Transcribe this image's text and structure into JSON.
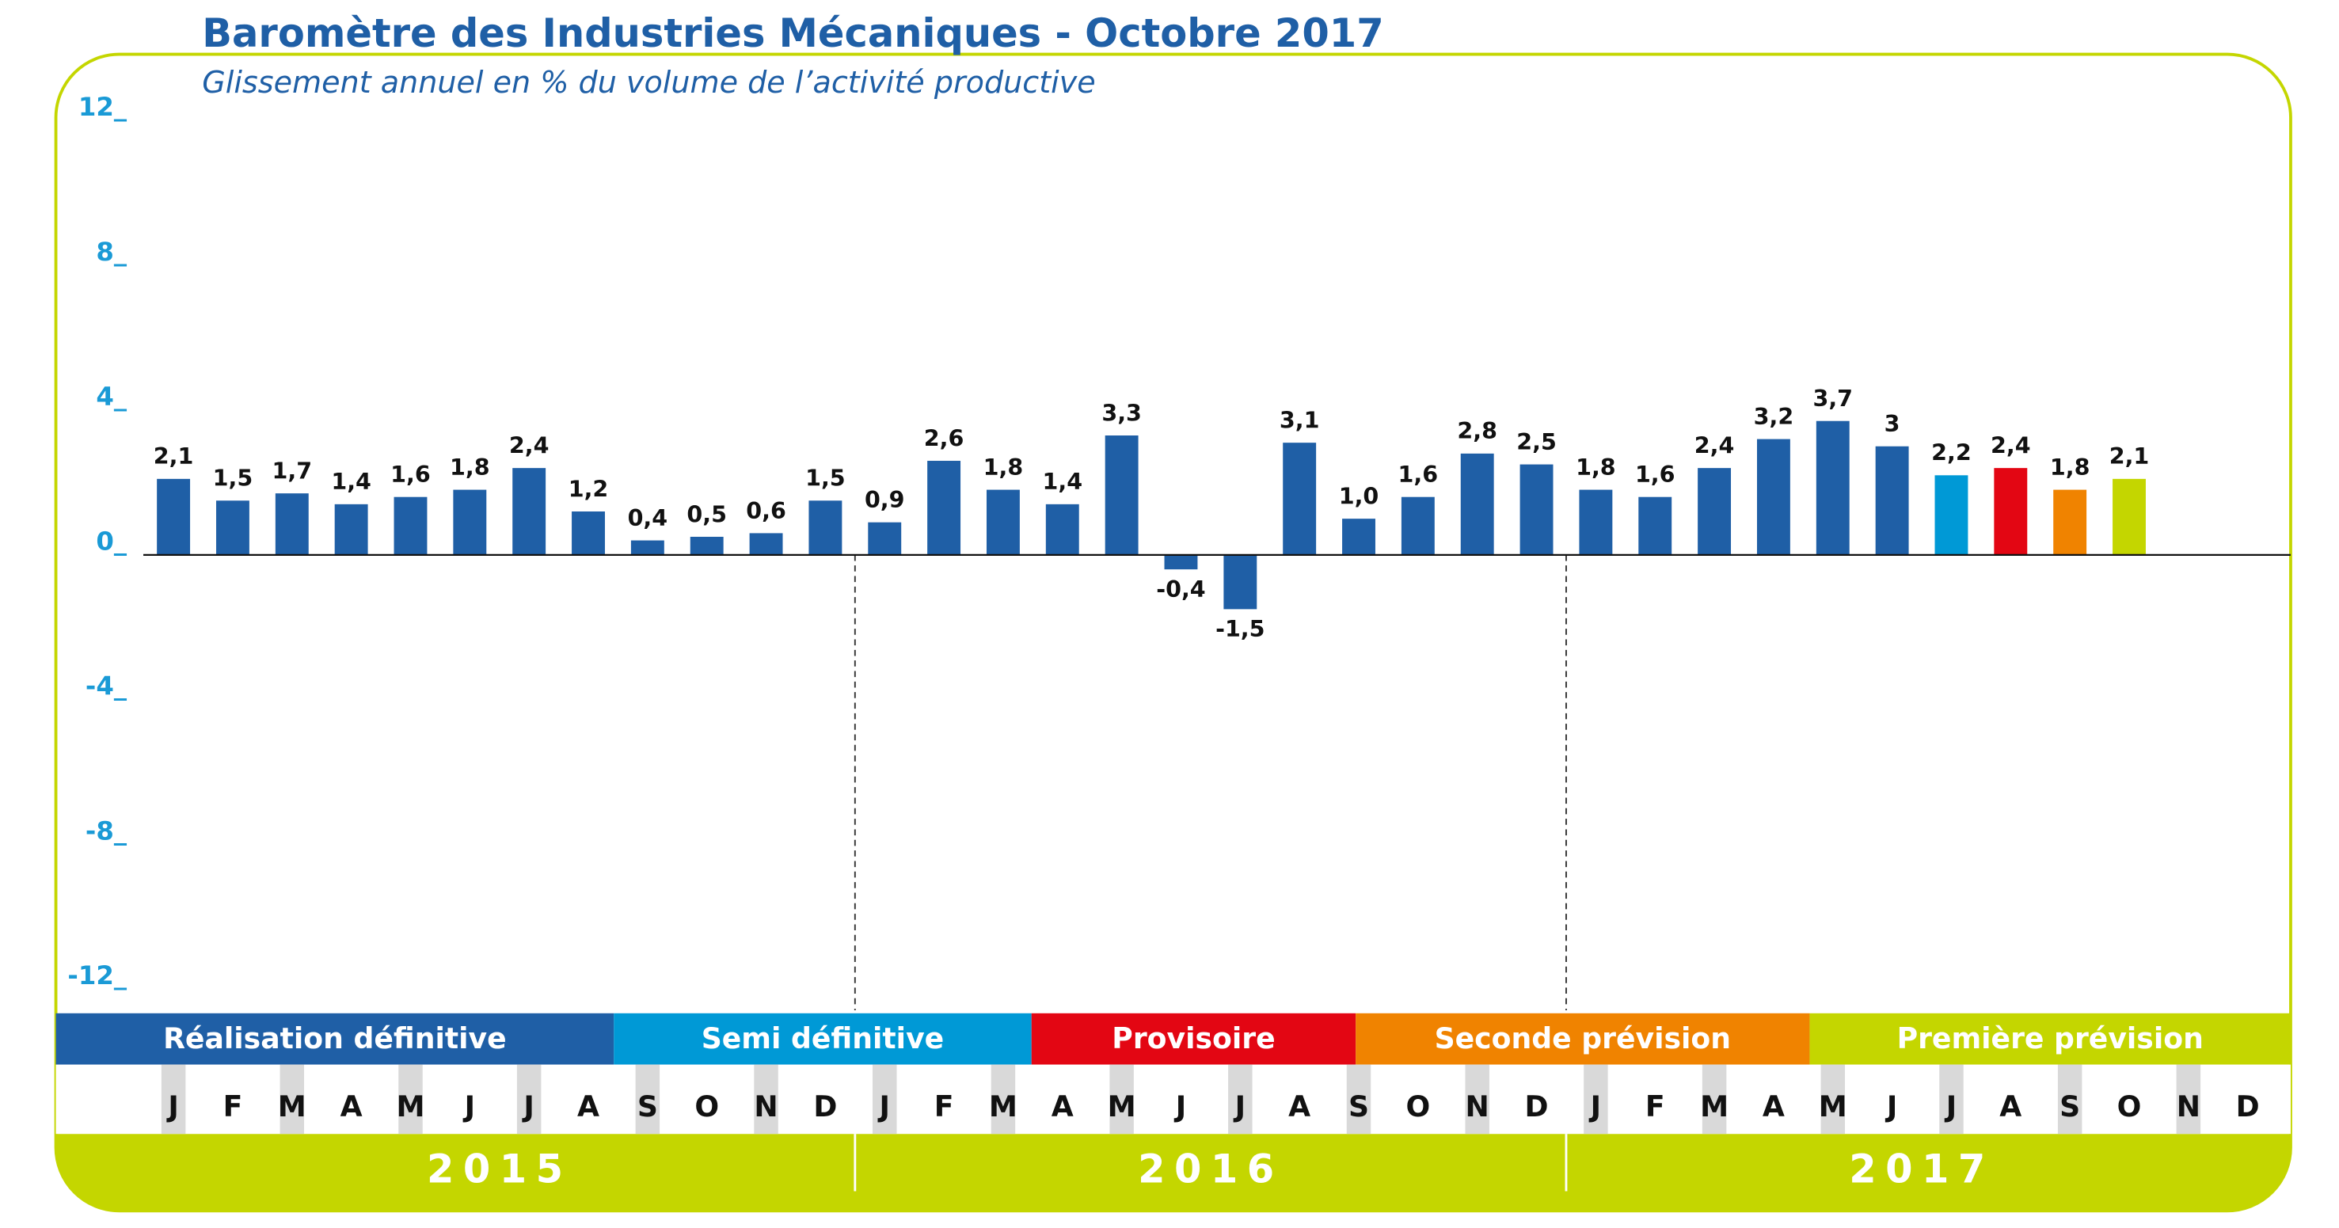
{
  "chart_data": {
    "type": "bar",
    "title": "Baromètre des Industries Mécaniques - Octobre 2017",
    "subtitle": "Glissement annuel en % du volume de l’activité productive",
    "categories": [
      "J",
      "F",
      "M",
      "A",
      "M",
      "J",
      "J",
      "A",
      "S",
      "O",
      "N",
      "D",
      "J",
      "F",
      "M",
      "A",
      "M",
      "J",
      "J",
      "A",
      "S",
      "O",
      "N",
      "D",
      "J",
      "F",
      "M",
      "A",
      "M",
      "J",
      "J",
      "A",
      "S",
      "O",
      "N",
      "D"
    ],
    "years": [
      "2015",
      "2016",
      "2017"
    ],
    "values": [
      2.1,
      1.5,
      1.7,
      1.4,
      1.6,
      1.8,
      2.4,
      1.2,
      0.4,
      0.5,
      0.6,
      1.5,
      0.9,
      2.6,
      1.8,
      1.4,
      3.3,
      -0.4,
      -1.5,
      3.1,
      1.0,
      1.6,
      2.8,
      2.5,
      1.8,
      1.6,
      2.4,
      3.2,
      3.7,
      3,
      2.2,
      2.4,
      1.8,
      2.1,
      null,
      null
    ],
    "value_labels": [
      "2,1",
      "1,5",
      "1,7",
      "1,4",
      "1,6",
      "1,8",
      "2,4",
      "1,2",
      "0,4",
      "0,5",
      "0,6",
      "1,5",
      "0,9",
      "2,6",
      "1,8",
      "1,4",
      "3,3",
      "-0,4",
      "-1,5",
      "3,1",
      "1,0",
      "1,6",
      "2,8",
      "2,5",
      "1,8",
      "1,6",
      "2,4",
      "3,2",
      "3,7",
      "3",
      "2,2",
      "2,4",
      "1,8",
      "2,1",
      null,
      null
    ],
    "colors": [
      "#1f5fa6",
      "#1f5fa6",
      "#1f5fa6",
      "#1f5fa6",
      "#1f5fa6",
      "#1f5fa6",
      "#1f5fa6",
      "#1f5fa6",
      "#1f5fa6",
      "#1f5fa6",
      "#1f5fa6",
      "#1f5fa6",
      "#1f5fa6",
      "#1f5fa6",
      "#1f5fa6",
      "#1f5fa6",
      "#1f5fa6",
      "#1f5fa6",
      "#1f5fa6",
      "#1f5fa6",
      "#1f5fa6",
      "#1f5fa6",
      "#1f5fa6",
      "#1f5fa6",
      "#1f5fa6",
      "#1f5fa6",
      "#1f5fa6",
      "#1f5fa6",
      "#1f5fa6",
      "#1f5fa6",
      "#0099d6",
      "#e30613",
      "#f08300",
      "#c4d600",
      null,
      null
    ],
    "ylim": [
      -12,
      12
    ],
    "yticks": [
      {
        "value": 12,
        "label": "12_"
      },
      {
        "value": 8,
        "label": "8_"
      },
      {
        "value": 4,
        "label": "4_"
      },
      {
        "value": 0,
        "label": "0_"
      },
      {
        "value": -4,
        "label": "-4_"
      },
      {
        "value": -8,
        "label": "-8_"
      },
      {
        "value": -12,
        "label": "-12_"
      }
    ],
    "phases": [
      {
        "name": "Réalisation définitive",
        "color": "#1f5fa6"
      },
      {
        "name": "Semi définitive",
        "color": "#0099d6"
      },
      {
        "name": "Provisoire",
        "color": "#e30613"
      },
      {
        "name": "Seconde prévision",
        "color": "#f08300"
      },
      {
        "name": "Première prévision",
        "color": "#c4d600"
      }
    ]
  }
}
